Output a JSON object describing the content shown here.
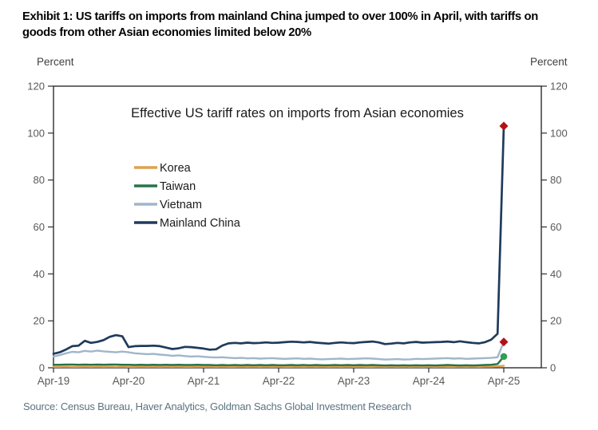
{
  "exhibit_title": {
    "line1": "Exhibit 1: US tariffs on imports from mainland China jumped to over 100% in April, with tariffs on",
    "line2": "goods from other Asian economies limited below 20%"
  },
  "axis_units": {
    "left": "Percent",
    "right": "Percent"
  },
  "source": "Source: Census Bureau, Haver Analytics, Goldman Sachs Global Investment Research",
  "chart_data": {
    "type": "line",
    "title": "Effective US tariff rates on imports from Asian economies",
    "xlabel": "",
    "ylabel": "Percent",
    "ylim": [
      0,
      120
    ],
    "y_ticks": [
      0,
      20,
      40,
      60,
      80,
      100,
      120
    ],
    "x_tick_labels": [
      "Apr-19",
      "Apr-20",
      "Apr-21",
      "Apr-22",
      "Apr-23",
      "Apr-24",
      "Apr-25"
    ],
    "x_frequency": "monthly",
    "x_range": "Apr-2019 to Apr-2025",
    "grid": false,
    "legend_position": "upper-left-inside",
    "annotation": "Red diamond / green dot markers flag the April 2025 jump: mainland China ~103%, Vietnam ~11%, Taiwan ~5%",
    "series": [
      {
        "name": "Korea",
        "color": "#DFA04E",
        "end_marker": null,
        "values": [
          0.4,
          0.4,
          0.5,
          0.4,
          0.4,
          0.5,
          0.4,
          0.5,
          0.4,
          0.5,
          0.4,
          0.5,
          0.4,
          0.4,
          0.5,
          0.4,
          0.5,
          0.4,
          0.5,
          0.4,
          0.5,
          0.4,
          0.4,
          0.5,
          0.4,
          0.5,
          0.4,
          0.5,
          0.4,
          0.4,
          0.5,
          0.4,
          0.5,
          0.4,
          0.5,
          0.4,
          0.5,
          0.4,
          0.4,
          0.5,
          0.4,
          0.5,
          0.4,
          0.5,
          0.4,
          0.5,
          0.4,
          0.5,
          0.4,
          0.5,
          0.4,
          0.4,
          0.5,
          0.4,
          0.5,
          0.4,
          0.5,
          0.4,
          0.5,
          0.4,
          0.5,
          0.4,
          0.5,
          0.4,
          0.4,
          0.5,
          0.4,
          0.5,
          0.4,
          0.5,
          0.5,
          0.6,
          0.9
        ]
      },
      {
        "name": "Taiwan",
        "color": "#277349",
        "end_marker": {
          "shape": "circle",
          "color": "#2FA04F"
        },
        "values": [
          1.3,
          1.3,
          1.4,
          1.4,
          1.3,
          1.4,
          1.3,
          1.4,
          1.3,
          1.4,
          1.4,
          1.3,
          1.3,
          1.2,
          1.3,
          1.2,
          1.3,
          1.2,
          1.3,
          1.2,
          1.3,
          1.2,
          1.2,
          1.3,
          1.2,
          1.2,
          1.1,
          1.2,
          1.1,
          1.2,
          1.1,
          1.2,
          1.1,
          1.2,
          1.1,
          1.2,
          1.1,
          1.1,
          1.2,
          1.1,
          1.2,
          1.1,
          1.2,
          1.1,
          1.1,
          1.2,
          1.1,
          1.2,
          1.1,
          1.2,
          1.1,
          1.2,
          1.1,
          1.0,
          1.1,
          1.0,
          1.1,
          1.0,
          1.1,
          1.0,
          1.1,
          1.0,
          1.1,
          1.2,
          1.1,
          1.0,
          1.1,
          1.0,
          1.1,
          1.2,
          1.3,
          1.6,
          4.8
        ]
      },
      {
        "name": "Vietnam",
        "color": "#A0B6CB",
        "end_marker": {
          "shape": "diamond",
          "color": "#B01218"
        },
        "values": [
          4.8,
          5.4,
          6.2,
          6.8,
          6.6,
          7.2,
          6.9,
          7.3,
          7.0,
          6.8,
          6.6,
          6.9,
          6.6,
          6.2,
          6.0,
          5.8,
          5.9,
          5.6,
          5.4,
          5.1,
          5.3,
          5.0,
          4.8,
          4.9,
          4.7,
          4.5,
          4.4,
          4.5,
          4.3,
          4.1,
          4.2,
          4.0,
          4.1,
          3.9,
          4.0,
          4.1,
          3.9,
          3.8,
          3.9,
          4.0,
          3.8,
          3.9,
          3.7,
          3.6,
          3.7,
          3.8,
          3.9,
          3.7,
          3.8,
          3.9,
          4.0,
          3.9,
          3.7,
          3.5,
          3.6,
          3.7,
          3.5,
          3.6,
          3.8,
          3.7,
          3.8,
          3.9,
          4.0,
          4.1,
          3.9,
          4.0,
          3.8,
          3.9,
          4.0,
          4.1,
          4.2,
          4.5,
          11.0
        ]
      },
      {
        "name": "Mainland China",
        "color": "#1F3B5C",
        "end_marker": {
          "shape": "diamond",
          "color": "#B01218"
        },
        "values": [
          6.0,
          6.6,
          7.8,
          9.2,
          9.4,
          11.5,
          10.6,
          11.0,
          11.8,
          13.2,
          13.9,
          13.4,
          8.8,
          9.2,
          9.3,
          9.3,
          9.4,
          9.2,
          8.6,
          8.0,
          8.3,
          8.9,
          8.8,
          8.5,
          8.2,
          7.7,
          7.9,
          9.5,
          10.4,
          10.6,
          10.4,
          10.7,
          10.5,
          10.6,
          10.8,
          10.6,
          10.7,
          10.9,
          11.1,
          11.0,
          10.8,
          11.0,
          10.7,
          10.5,
          10.3,
          10.6,
          10.8,
          10.6,
          10.5,
          10.8,
          11.0,
          11.2,
          10.8,
          10.1,
          10.3,
          10.6,
          10.4,
          10.8,
          11.0,
          10.7,
          10.8,
          10.9,
          11.0,
          11.2,
          10.9,
          11.3,
          10.9,
          10.6,
          10.4,
          10.9,
          12.0,
          14.5,
          103.0
        ]
      }
    ]
  },
  "colors": {
    "axis": "#2d2d2d",
    "tick_label": "#595959",
    "source_text": "#5b737e",
    "marker_red": "#B01218"
  }
}
